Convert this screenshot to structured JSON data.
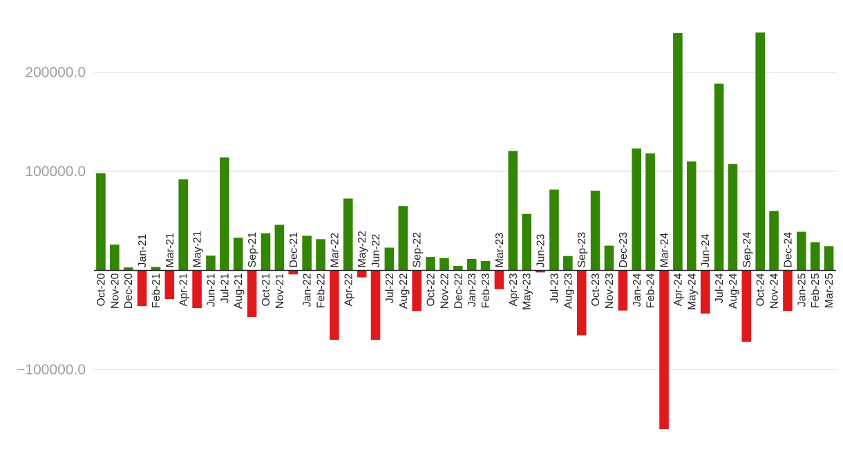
{
  "chart_data": {
    "type": "bar",
    "colors": {
      "positive": "#338504",
      "negative": "#e0191d",
      "grid": "#e0e0e0",
      "tick_text": "#9e9e9e"
    },
    "grid": true,
    "ylim": [
      -180000,
      250000
    ],
    "y_ticks": [
      {
        "value": 200000,
        "label": "200000.0"
      },
      {
        "value": 100000,
        "label": "100000.0"
      },
      {
        "value": -100000,
        "label": "−100000.0"
      }
    ],
    "categories": [
      "Oct-20",
      "Nov-20",
      "Dec-20",
      "Jan-21",
      "Feb-21",
      "Mar-21",
      "Apr-21",
      "May-21",
      "Jun-21",
      "Jul-21",
      "Aug-21",
      "Sep-21",
      "Oct-21",
      "Nov-21",
      "Dec-21",
      "Jan-22",
      "Feb-22",
      "Mar-22",
      "Apr-22",
      "May-22",
      "Jun-22",
      "Jul-22",
      "Aug-22",
      "Sep-22",
      "Oct-22",
      "Nov-22",
      "Dec-22",
      "Jan-23",
      "Feb-23",
      "Mar-23",
      "Apr-23",
      "May-23",
      "Jun-23",
      "Jul-23",
      "Aug-23",
      "Sep-23",
      "Oct-23",
      "Nov-23",
      "Dec-23",
      "Jan-24",
      "Feb-24",
      "Mar-24",
      "Apr-24",
      "May-24",
      "Jun-24",
      "Jul-24",
      "Aug-24",
      "Sep-24",
      "Oct-24",
      "Nov-24",
      "Dec-24",
      "Jan-25",
      "Feb-25",
      "Mar-25"
    ],
    "values": [
      98000,
      26000,
      3000,
      -36000,
      3500,
      -29000,
      92000,
      -38000,
      15000,
      114000,
      33000,
      -47000,
      37500,
      46000,
      -4000,
      35000,
      31500,
      -70000,
      72500,
      -7000,
      -70000,
      23000,
      65000,
      -41000,
      13500,
      12500,
      4500,
      11500,
      9500,
      -19000,
      120500,
      57000,
      -2000,
      81500,
      14500,
      -65500,
      80500,
      25000,
      -40500,
      123000,
      118000,
      -160000,
      239500,
      110000,
      -43500,
      188500,
      107500,
      -72000,
      240000,
      60000,
      -41000,
      39000,
      28500,
      24500
    ]
  }
}
